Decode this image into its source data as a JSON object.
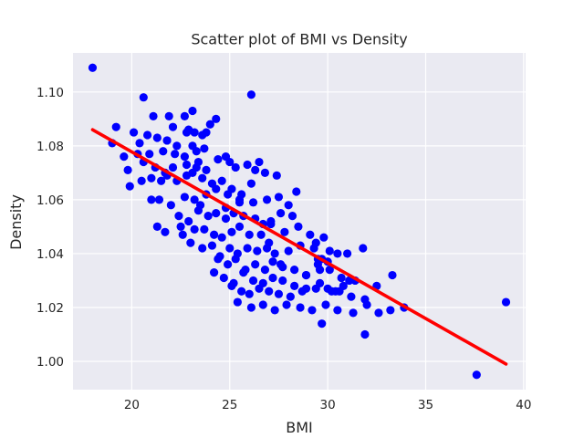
{
  "chart_data": {
    "type": "scatter",
    "title": "Scatter plot of BMI vs Density",
    "xlabel": "BMI",
    "ylabel": "Density",
    "xlim": [
      17.0,
      40.1
    ],
    "ylim": [
      0.9895,
      1.1145
    ],
    "xticks": [
      20,
      25,
      30,
      35,
      40
    ],
    "yticks": [
      1.0,
      1.02,
      1.04,
      1.06,
      1.08,
      1.1
    ],
    "xtick_labels": [
      "20",
      "25",
      "30",
      "35",
      "40"
    ],
    "ytick_labels": [
      "1.00",
      "1.02",
      "1.04",
      "1.06",
      "1.08",
      "1.10"
    ],
    "grid": true,
    "colors": {
      "background": "#eaeaf2",
      "grid": "#ffffff",
      "points": "#0000ff",
      "fit_line": "#ff0000"
    },
    "series": [
      {
        "type": "scatter",
        "x": [
          18.0,
          20.6,
          26.1,
          19.2,
          21.1,
          23.1,
          24.3,
          20.1,
          21.9,
          22.1,
          22.7,
          22.8,
          22.9,
          23.2,
          23.6,
          23.8,
          19.0,
          20.4,
          20.8,
          21.3,
          21.8,
          22.3,
          23.1,
          23.3,
          23.7,
          19.6,
          20.3,
          20.9,
          21.6,
          22.2,
          22.7,
          23.4,
          19.8,
          20.6,
          21.2,
          21.7,
          22.1,
          22.8,
          23.3,
          23.8,
          24.4,
          24.8,
          25.0,
          25.3,
          25.9,
          26.3,
          26.8,
          19.9,
          20.5,
          21.0,
          21.5,
          21.8,
          22.3,
          22.8,
          23.1,
          23.6,
          24.1,
          24.6,
          25.1,
          25.6,
          26.1,
          27.4,
          21.4,
          22.0,
          22.7,
          23.2,
          23.8,
          24.3,
          24.9,
          25.5,
          26.2,
          26.9,
          27.5,
          28.0,
          28.4,
          21.3,
          21.7,
          22.4,
          22.9,
          23.4,
          23.9,
          24.3,
          24.8,
          25.2,
          25.7,
          26.3,
          26.7,
          27.1,
          27.6,
          28.2,
          22.6,
          23.2,
          23.7,
          24.2,
          24.6,
          25.1,
          25.5,
          26.0,
          26.6,
          27.1,
          27.8,
          28.5,
          29.1,
          29.4,
          29.8,
          23.0,
          23.6,
          24.1,
          24.5,
          25.0,
          25.4,
          25.9,
          26.4,
          26.9,
          27.3,
          28.0,
          28.6,
          29.3,
          29.7,
          30.0,
          30.5,
          24.4,
          24.9,
          25.3,
          25.8,
          26.3,
          26.8,
          27.2,
          27.7,
          28.3,
          28.9,
          29.5,
          30.1,
          30.7,
          31.1,
          24.2,
          24.7,
          25.2,
          25.7,
          26.2,
          26.7,
          27.2,
          27.7,
          28.3,
          28.9,
          29.6,
          30.2,
          30.8,
          31.4,
          25.1,
          25.6,
          26.0,
          26.5,
          27.0,
          27.5,
          28.1,
          28.7,
          29.4,
          30.0,
          30.6,
          31.2,
          31.9,
          25.4,
          26.1,
          26.7,
          27.3,
          27.9,
          28.6,
          29.2,
          29.9,
          30.5,
          31.3,
          32.0,
          32.6,
          33.2,
          33.9,
          28.9,
          29.6,
          30.1,
          31.0,
          31.8,
          32.5,
          33.3,
          24.0,
          25.5,
          27.0,
          29.5,
          26.5,
          23.5,
          21.0,
          22.5,
          24.8,
          27.6,
          30.4,
          29.7,
          31.9,
          37.6,
          39.1
        ],
        "y": [
          1.109,
          1.098,
          1.099,
          1.087,
          1.091,
          1.093,
          1.09,
          1.085,
          1.091,
          1.087,
          1.091,
          1.085,
          1.086,
          1.085,
          1.084,
          1.085,
          1.081,
          1.081,
          1.084,
          1.083,
          1.082,
          1.08,
          1.08,
          1.078,
          1.079,
          1.076,
          1.077,
          1.077,
          1.078,
          1.077,
          1.076,
          1.074,
          1.071,
          1.074,
          1.072,
          1.07,
          1.072,
          1.073,
          1.072,
          1.071,
          1.075,
          1.076,
          1.074,
          1.072,
          1.073,
          1.071,
          1.07,
          1.065,
          1.067,
          1.068,
          1.067,
          1.069,
          1.067,
          1.069,
          1.07,
          1.068,
          1.066,
          1.067,
          1.064,
          1.062,
          1.066,
          1.069,
          1.06,
          1.058,
          1.061,
          1.06,
          1.062,
          1.064,
          1.062,
          1.06,
          1.059,
          1.06,
          1.061,
          1.058,
          1.063,
          1.05,
          1.048,
          1.054,
          1.052,
          1.056,
          1.054,
          1.055,
          1.053,
          1.055,
          1.054,
          1.053,
          1.051,
          1.052,
          1.055,
          1.054,
          1.047,
          1.049,
          1.049,
          1.047,
          1.046,
          1.048,
          1.05,
          1.047,
          1.047,
          1.051,
          1.048,
          1.05,
          1.047,
          1.044,
          1.046,
          1.044,
          1.042,
          1.043,
          1.039,
          1.042,
          1.04,
          1.042,
          1.041,
          1.042,
          1.04,
          1.041,
          1.043,
          1.042,
          1.038,
          1.037,
          1.04,
          1.038,
          1.036,
          1.038,
          1.034,
          1.036,
          1.034,
          1.037,
          1.035,
          1.034,
          1.032,
          1.036,
          1.034,
          1.031,
          1.03,
          1.033,
          1.031,
          1.029,
          1.033,
          1.03,
          1.029,
          1.031,
          1.03,
          1.028,
          1.027,
          1.029,
          1.026,
          1.028,
          1.03,
          1.028,
          1.026,
          1.025,
          1.027,
          1.026,
          1.025,
          1.024,
          1.026,
          1.027,
          1.027,
          1.026,
          1.024,
          1.023,
          1.022,
          1.02,
          1.021,
          1.019,
          1.021,
          1.02,
          1.019,
          1.021,
          1.019,
          1.018,
          1.021,
          1.018,
          1.019,
          1.02,
          1.032,
          1.034,
          1.041,
          1.04,
          1.042,
          1.028,
          1.032,
          1.088,
          1.059,
          1.044,
          1.038,
          1.074,
          1.058,
          1.06,
          1.05,
          1.057,
          1.036,
          1.026,
          1.014,
          1.01,
          0.995,
          1.022
        ]
      },
      {
        "type": "line",
        "name": "",
        "x": [
          18.0,
          39.1
        ],
        "y": [
          1.086,
          0.999
        ]
      }
    ]
  }
}
